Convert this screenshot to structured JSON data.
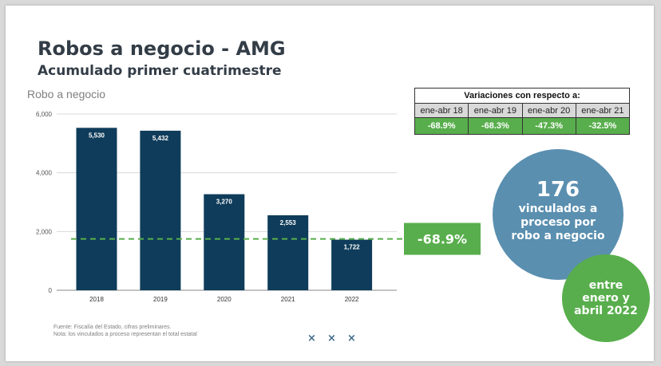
{
  "slide": {
    "title": "Robos a negocio - AMG",
    "subtitle": "Acumulado primer cuatrimestre"
  },
  "chart_data": {
    "type": "bar",
    "title": "Robo a negocio",
    "categories": [
      "2018",
      "2019",
      "2020",
      "2021",
      "2022"
    ],
    "values": [
      5530,
      5432,
      3270,
      2553,
      1722
    ],
    "value_labels": [
      "5,530",
      "5,432",
      "3,270",
      "2,553",
      "1,722"
    ],
    "ylim": [
      0,
      6000
    ],
    "yticks": [
      0,
      2000,
      4000,
      6000
    ],
    "ytick_labels": [
      "0",
      "2,000",
      "4,000",
      "6,000"
    ],
    "grid": true,
    "bar_color": "#0f3c5a",
    "reference_line": {
      "value": 1722,
      "style": "dashed",
      "color": "#58ae4c",
      "label": "-68.9%"
    }
  },
  "variations": {
    "header": "Variaciones con respecto a:",
    "periods": [
      "ene-abr 18",
      "ene-abr 19",
      "ene-abr 20",
      "ene-abr 21"
    ],
    "values": [
      "-68.9%",
      "-68.3%",
      "-47.3%",
      "-32.5%"
    ]
  },
  "highlight": {
    "number": "176",
    "text": "vinculados a proceso por robo a negocio"
  },
  "period_note": "entre enero y abril 2022",
  "footnotes": [
    "Fuente: Fiscalía del Estado, cifras preliminares.",
    "Nota: los vinculados a proceso representan el total estatal"
  ],
  "decoration": {
    "marks": [
      "×",
      "×",
      "×"
    ]
  },
  "colors": {
    "accent_green": "#58ae4c",
    "accent_blue": "#5a8fb0",
    "bar": "#0f3c5a",
    "title": "#333d47"
  }
}
